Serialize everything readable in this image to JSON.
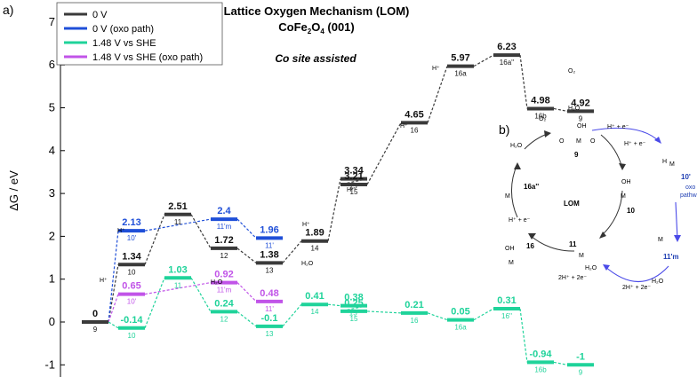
{
  "panel_labels": [
    "a)",
    "b)"
  ],
  "chart_data": {
    "type": "line",
    "title": "Lattice Oxygen Mechanism (LOM)",
    "subtitle_parts": [
      "CoFe",
      "2",
      "O",
      "4",
      " (001)"
    ],
    "annotation": "Co site assisted",
    "ylabel": "ΔG / eV",
    "ylim": [
      -1.45,
      7
    ],
    "yticks": [
      -1,
      0,
      1,
      2,
      3,
      4,
      5,
      6,
      7
    ],
    "legend_position": "top-left",
    "colors": {
      "black": "#3a3a3a",
      "blue": "#1f4fd8",
      "green": "#1fd39a",
      "purple": "#c154e8"
    },
    "series": [
      {
        "name": "0 V",
        "color_key": "black",
        "levels": [
          {
            "label": "9",
            "value": 0,
            "text": "0"
          },
          {
            "label": "10",
            "value": 1.34,
            "text": "1.34"
          },
          {
            "label": "11",
            "value": 2.51,
            "text": "2.51"
          },
          {
            "label": "12",
            "value": 1.72,
            "text": "1.72"
          },
          {
            "label": "13",
            "value": 1.38,
            "text": "1.38"
          },
          {
            "label": "14",
            "value": 1.89,
            "text": "1.89"
          },
          {
            "label": "15'",
            "value": 3.34,
            "text": "3.34"
          },
          {
            "label": "15",
            "value": 3.21,
            "text": "3.21"
          },
          {
            "label": "16",
            "value": 4.65,
            "text": "4.65"
          },
          {
            "label": "16a",
            "value": 5.97,
            "text": "5.97"
          },
          {
            "label": "16a''",
            "value": 6.23,
            "text": "6.23"
          },
          {
            "label": "16b",
            "value": 4.98,
            "text": "4.98"
          },
          {
            "label": "9",
            "value": 4.92,
            "text": "4.92"
          }
        ]
      },
      {
        "name": "0 V (oxo path)",
        "color_key": "blue",
        "levels": [
          {
            "label": "10'",
            "value": 2.13,
            "text": "2.13"
          },
          {
            "label": "11'm",
            "value": 2.4,
            "text": "2.4"
          },
          {
            "label": "11'",
            "value": 1.96,
            "text": "1.96"
          }
        ]
      },
      {
        "name": "1.48 V vs SHE",
        "color_key": "green",
        "levels": [
          {
            "label": "10",
            "value": -0.14,
            "text": "-0.14"
          },
          {
            "label": "11",
            "value": 1.03,
            "text": "1.03"
          },
          {
            "label": "12",
            "value": 0.24,
            "text": "0.24"
          },
          {
            "label": "13",
            "value": -0.1,
            "text": "-0.1"
          },
          {
            "label": "14",
            "value": 0.41,
            "text": "0.41"
          },
          {
            "label": "15'",
            "value": 0.38,
            "text": "0.38"
          },
          {
            "label": "15",
            "value": 0.25,
            "text": "0.25"
          },
          {
            "label": "16",
            "value": 0.21,
            "text": "0.21"
          },
          {
            "label": "16a",
            "value": 0.05,
            "text": "0.05"
          },
          {
            "label": "16''",
            "value": 0.31,
            "text": "0.31"
          },
          {
            "label": "16b",
            "value": -0.94,
            "text": "-0.94"
          },
          {
            "label": "9",
            "value": -1,
            "text": "-1"
          }
        ]
      },
      {
        "name": "1.48 V vs SHE (oxo path)",
        "color_key": "purple",
        "levels": [
          {
            "label": "10'",
            "value": 0.65,
            "text": "0.65"
          },
          {
            "label": "11'm",
            "value": 0.92,
            "text": "0.92"
          },
          {
            "label": "11'",
            "value": 0.48,
            "text": "0.48"
          }
        ]
      }
    ],
    "step_labels": [
      "H⁺",
      "H⁺",
      "H₂O",
      "H₂O",
      "H⁺",
      "H⁺",
      "H⁺",
      "H⁺",
      "O₂",
      "H₂O"
    ]
  },
  "mechanism": {
    "center_label": "LOM",
    "species": [
      "9",
      "10",
      "11",
      "16",
      "16a''",
      "10'",
      "11'm"
    ],
    "step_texts": [
      "H⁺ + e⁻",
      "H⁺ + e⁻",
      "H⁺ + e⁻",
      "2H⁺ + 2e⁻",
      "2H⁺ + 2e⁻",
      "O₂",
      "H₂O",
      "H₂O",
      "H₂O"
    ],
    "path_label": "oxo\npathway",
    "atom_labels": [
      "OH",
      "O",
      "M",
      "O"
    ]
  }
}
